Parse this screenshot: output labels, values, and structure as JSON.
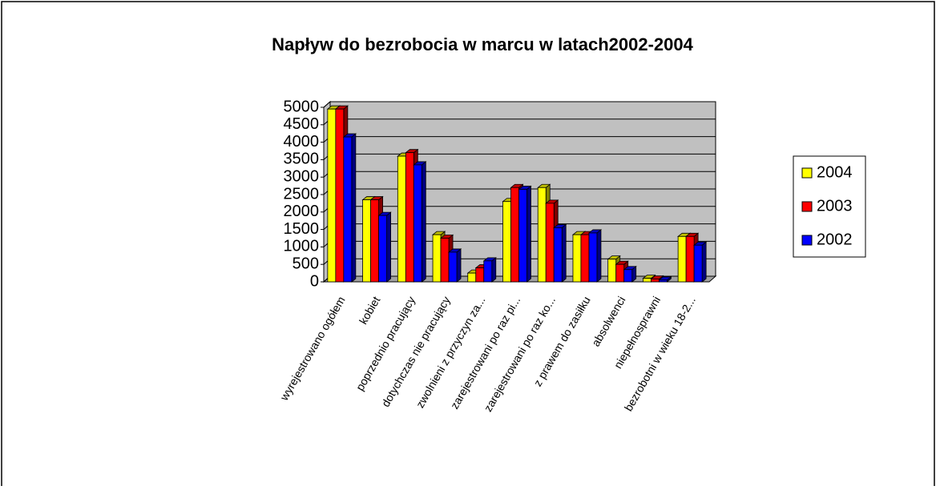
{
  "chart_data": {
    "type": "bar3d",
    "title": "Napływ do bezrobocia w marcu w latach2002-2004",
    "categories": [
      "wyrejestrowano ogółem",
      "kobiet",
      "poprzednio pracujący",
      "dotychczas nie pracujący",
      "zwolnieni z przyczyn za...",
      "zarejestrowani po raz pi...",
      "zarejestrowani po raz ko...",
      "z prawem do zasiłku",
      "absolwenci",
      "niepełnosprawni",
      "bezrobotni w wieku 18-2..."
    ],
    "series": [
      {
        "name": "2004",
        "color": "#ffff00",
        "values": [
          4950,
          2350,
          3600,
          1350,
          250,
          2300,
          2700,
          1350,
          650,
          100,
          1300
        ]
      },
      {
        "name": "2003",
        "color": "#ff0000",
        "values": [
          4950,
          2350,
          3700,
          1250,
          400,
          2700,
          2250,
          1350,
          500,
          80,
          1300
        ]
      },
      {
        "name": "2002",
        "color": "#0000ff",
        "values": [
          4150,
          1900,
          3350,
          850,
          600,
          2650,
          1550,
          1400,
          350,
          50,
          1050
        ]
      }
    ],
    "ylim": [
      0,
      5000
    ],
    "yticks": [
      0,
      500,
      1000,
      1500,
      2000,
      2500,
      3000,
      3500,
      4000,
      4500,
      5000
    ],
    "grid": true,
    "legend": "right"
  }
}
